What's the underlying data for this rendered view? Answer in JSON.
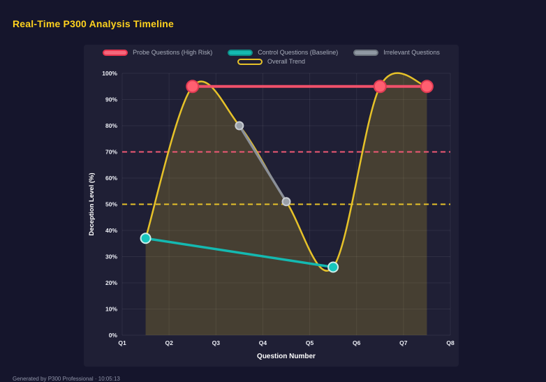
{
  "page": {
    "title": "Real-Time P300 Analysis Timeline",
    "footer": "Generated by P300 Professional · 10:05:13"
  },
  "chart_data": {
    "type": "line",
    "title": "",
    "xlabel": "Question Number",
    "ylabel": "Deception Level (%)",
    "x_ticks": [
      "Q1",
      "Q2",
      "Q3",
      "Q4",
      "Q5",
      "Q6",
      "Q7",
      "Q8"
    ],
    "y_ticks": [
      "0%",
      "10%",
      "20%",
      "30%",
      "40%",
      "50%",
      "60%",
      "70%",
      "80%",
      "90%",
      "100%"
    ],
    "xlim": [
      1,
      8
    ],
    "ylim": [
      0,
      100
    ],
    "grid": true,
    "legend_position": "top",
    "series": [
      {
        "name": "Probe Questions (High Risk)",
        "color": "#f0506a",
        "swatch_fill": "#f4687c",
        "swatch_border": "#e8354f",
        "marker_fill": "#ff5f70",
        "marker_border": "#e03a52",
        "marker_radius": 8.5,
        "line_width": 4,
        "x": [
          2.5,
          6.5,
          7.5
        ],
        "values": [
          95,
          95,
          95
        ]
      },
      {
        "name": "Control Questions (Baseline)",
        "color": "#14b9b1",
        "swatch_fill": "#14b9b1",
        "swatch_border": "#0e8f89",
        "marker_fill": "#17c6bd",
        "marker_border": "#cdeeea",
        "marker_radius": 7,
        "line_width": 3.5,
        "x": [
          1.5,
          5.5
        ],
        "values": [
          37,
          26
        ]
      },
      {
        "name": "Irrelevant Questions",
        "color": "#8b9099",
        "swatch_fill": "#9099a3",
        "swatch_border": "#6d757e",
        "marker_fill": "#9aa0a8",
        "marker_border": "#c8ccd2",
        "marker_radius": 5.5,
        "line_width": 3.5,
        "x": [
          3.5,
          4.5
        ],
        "values": [
          80,
          51
        ]
      },
      {
        "name": "Overall Trend",
        "color": "#e6c229",
        "swatch_fill": "transparent",
        "swatch_border": "#e6c229",
        "marker_radius": 0,
        "line_width": 2.5,
        "smooth": true,
        "fill": true,
        "fill_color": "rgba(230,194,41,0.2)",
        "x": [
          1.5,
          2.5,
          3.5,
          4.5,
          5.5,
          6.5,
          7.5
        ],
        "values": [
          37,
          95,
          80,
          51,
          26,
          95,
          95
        ]
      }
    ],
    "thresholds": [
      {
        "value": 70,
        "color": "#ef5874"
      },
      {
        "value": 50,
        "color": "#e6c229"
      }
    ],
    "colors": {
      "background": "#15152c",
      "panel": "#1f1f35",
      "grid": "rgba(255,255,255,0.07)",
      "tick_text": "#eceef5",
      "axis_title": "#ffffff",
      "title": "#ffd21e"
    }
  }
}
